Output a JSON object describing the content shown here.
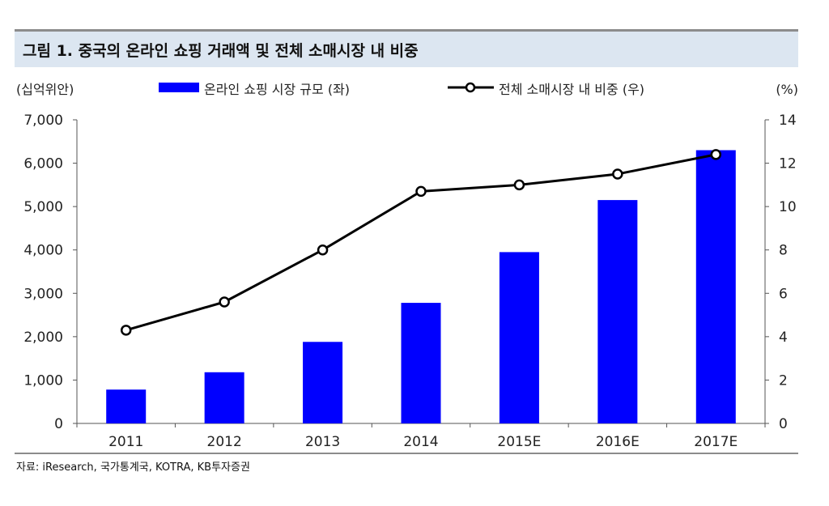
{
  "header": {
    "title": "그림 1. 중국의 온라인 쇼핑 거래액 및 전체 소매시장 내 비중"
  },
  "footer": {
    "source": "자료: iResearch, 국가통계국, KOTRA, KB투자증권"
  },
  "chart_data": {
    "type": "bar",
    "categories": [
      "2011",
      "2012",
      "2013",
      "2014",
      "2015E",
      "2016E",
      "2017E"
    ],
    "series": [
      {
        "name": "온라인 쇼핑 시장 규모 (좌)",
        "type": "bar",
        "axis": "left",
        "color": "#0000ff",
        "values": [
          780,
          1180,
          1880,
          2780,
          3950,
          5150,
          6300
        ]
      },
      {
        "name": "전체 소매시장 내 비중 (우)",
        "type": "line",
        "axis": "right",
        "color": "#000000",
        "values": [
          4.3,
          5.6,
          8.0,
          10.7,
          11.0,
          11.5,
          12.4
        ]
      }
    ],
    "y_left": {
      "unit_label": "(십억위안)",
      "min": 0,
      "max": 7000,
      "ticks": [
        0,
        1000,
        2000,
        3000,
        4000,
        5000,
        6000,
        7000
      ],
      "tick_labels": [
        "0",
        "1,000",
        "2,000",
        "3,000",
        "4,000",
        "5,000",
        "6,000",
        "7,000"
      ]
    },
    "y_right": {
      "unit_label": "(%)",
      "min": 0,
      "max": 14,
      "ticks": [
        0,
        2,
        4,
        6,
        8,
        10,
        12,
        14
      ],
      "tick_labels": [
        "0",
        "2",
        "4",
        "6",
        "8",
        "10",
        "12",
        "14"
      ]
    },
    "legend": {
      "placement": "top",
      "entries": [
        "온라인 쇼핑 시장 규모 (좌)",
        "전체 소매시장 내 비중 (우)"
      ]
    },
    "grid": false
  }
}
